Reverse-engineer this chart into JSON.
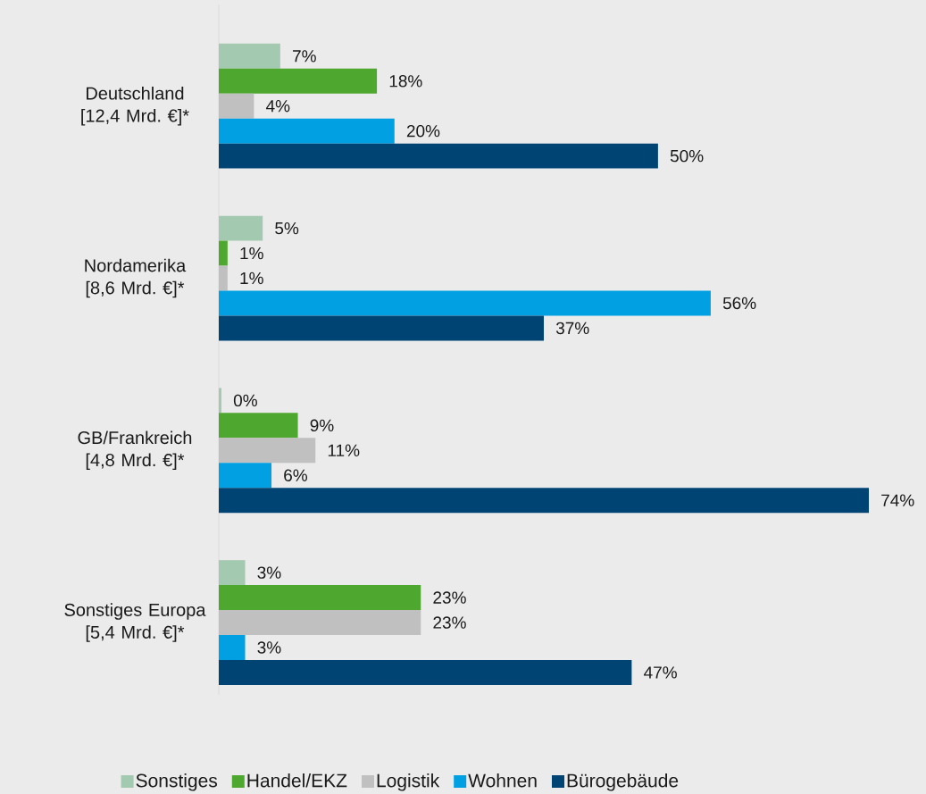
{
  "chart_data": {
    "type": "bar",
    "orientation": "horizontal",
    "categories": [
      "Deutschland [12,4 Mrd. €]*",
      "Nordamerika [8,6 Mrd. €]*",
      "GB/Frankreich [4,8 Mrd. €]*",
      "Sonstiges Europa [5,4 Mrd. €]*"
    ],
    "series": [
      {
        "name": "Sonstiges",
        "color": "#a3c9b0",
        "values": [
          7,
          5,
          0.3,
          3
        ],
        "value_labels": [
          "7%",
          "5%",
          "0%",
          "3%"
        ]
      },
      {
        "name": "Handel/EKZ",
        "color": "#4ea72e",
        "values": [
          18,
          1,
          9,
          23
        ],
        "value_labels": [
          "18%",
          "1%",
          "9%",
          "23%"
        ]
      },
      {
        "name": "Logistik",
        "color": "#c0c0c0",
        "values": [
          4,
          1,
          11,
          23
        ],
        "value_labels": [
          "4%",
          "1%",
          "11%",
          "23%"
        ]
      },
      {
        "name": "Wohnen",
        "color": "#00a0e3",
        "values": [
          20,
          56,
          6,
          3
        ],
        "value_labels": [
          "20%",
          "56%",
          "6%",
          "3%"
        ]
      },
      {
        "name": "Bürogebäude",
        "color": "#004474",
        "values": [
          50,
          37,
          74,
          47
        ],
        "value_labels": [
          "50%",
          "37%",
          "74%",
          "47%"
        ]
      }
    ],
    "legend": "bottom",
    "tick_labels": "y"
  }
}
